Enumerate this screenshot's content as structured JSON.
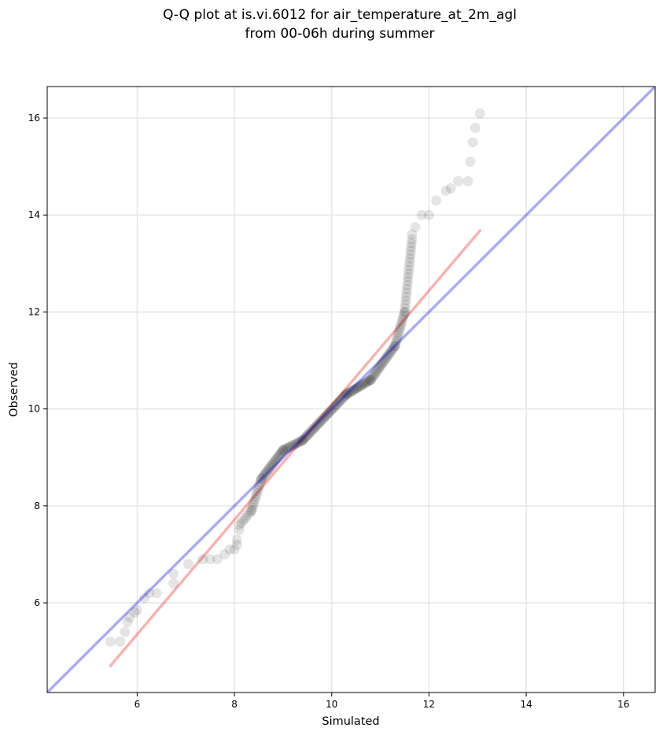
{
  "chart_data": {
    "type": "scatter",
    "title_lines": [
      "Q-Q plot at is.vi.6012 for air_temperature_at_2m_agl",
      "from 00-06h during summer"
    ],
    "xlabel": "Simulated",
    "ylabel": "Observed",
    "xlim": [
      4.15,
      16.65
    ],
    "ylim": [
      4.15,
      16.65
    ],
    "x_ticks": [
      6,
      8,
      10,
      12,
      14,
      16
    ],
    "y_ticks": [
      6,
      8,
      10,
      12,
      14,
      16
    ],
    "grid": true,
    "reference_line": {
      "name": "1:1",
      "color": "#0000dd",
      "from": [
        4.15,
        4.15
      ],
      "to": [
        16.65,
        16.65
      ]
    },
    "fit_line": {
      "color": "#ee2222",
      "from": [
        5.45,
        4.7
      ],
      "to": [
        13.05,
        13.68
      ]
    },
    "point_color": "#000000",
    "sparse_points": [
      [
        5.45,
        5.2
      ],
      [
        5.65,
        5.2
      ],
      [
        5.75,
        5.4
      ],
      [
        5.8,
        5.6
      ],
      [
        5.85,
        5.7
      ],
      [
        5.95,
        5.8
      ],
      [
        6.0,
        5.85
      ],
      [
        6.15,
        6.1
      ],
      [
        6.25,
        6.2
      ],
      [
        6.4,
        6.2
      ],
      [
        6.75,
        6.4
      ],
      [
        6.75,
        6.6
      ],
      [
        7.05,
        6.8
      ],
      [
        7.35,
        6.9
      ],
      [
        7.5,
        6.9
      ],
      [
        7.65,
        6.9
      ],
      [
        7.8,
        7.0
      ],
      [
        7.9,
        7.1
      ],
      [
        8.0,
        7.1
      ],
      [
        8.05,
        7.2
      ],
      [
        8.05,
        7.3
      ],
      [
        8.1,
        7.5
      ],
      [
        11.65,
        13.6
      ],
      [
        11.72,
        13.75
      ],
      [
        11.85,
        14.0
      ],
      [
        12.0,
        14.0
      ],
      [
        12.15,
        14.3
      ],
      [
        12.35,
        14.5
      ],
      [
        12.45,
        14.55
      ],
      [
        12.6,
        14.7
      ],
      [
        12.8,
        14.7
      ],
      [
        12.85,
        15.1
      ],
      [
        12.9,
        15.5
      ],
      [
        12.95,
        15.8
      ],
      [
        13.05,
        16.1
      ]
    ],
    "dense_segments": [
      {
        "from": [
          8.1,
          7.6
        ],
        "to": [
          8.35,
          7.9
        ],
        "count": 7
      },
      {
        "from": [
          8.35,
          7.9
        ],
        "to": [
          8.55,
          8.55
        ],
        "count": 12
      },
      {
        "from": [
          8.55,
          8.55
        ],
        "to": [
          9.0,
          9.15
        ],
        "count": 22
      },
      {
        "from": [
          9.0,
          9.15
        ],
        "to": [
          9.4,
          9.35
        ],
        "count": 15
      },
      {
        "from": [
          9.4,
          9.35
        ],
        "to": [
          10.3,
          10.3
        ],
        "count": 40
      },
      {
        "from": [
          10.3,
          10.3
        ],
        "to": [
          10.8,
          10.6
        ],
        "count": 22
      },
      {
        "from": [
          10.8,
          10.6
        ],
        "to": [
          11.3,
          11.3
        ],
        "count": 24
      },
      {
        "from": [
          11.3,
          11.3
        ],
        "to": [
          11.5,
          12.0
        ],
        "count": 14
      },
      {
        "from": [
          11.5,
          12.0
        ],
        "to": [
          11.65,
          13.5
        ],
        "count": 20
      }
    ]
  }
}
